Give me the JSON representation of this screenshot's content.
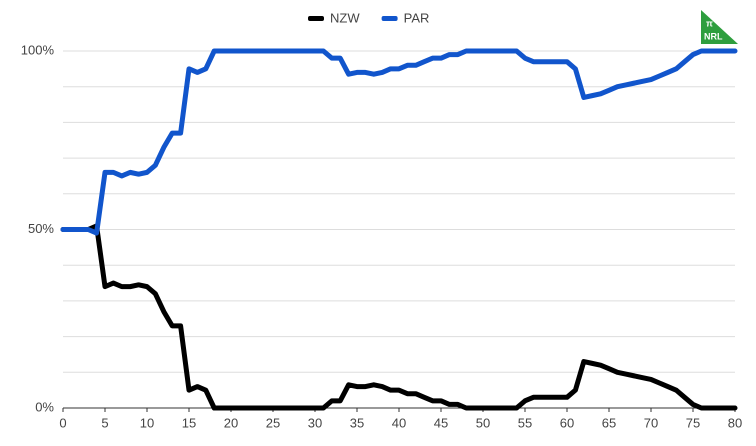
{
  "chart_data": {
    "type": "line",
    "logo": {
      "symbol": "π",
      "text": "NRL"
    },
    "x": [
      0,
      1,
      2,
      3,
      4,
      5,
      6,
      7,
      8,
      9,
      10,
      11,
      12,
      13,
      14,
      15,
      16,
      17,
      18,
      19,
      20,
      21,
      22,
      23,
      24,
      25,
      26,
      27,
      28,
      29,
      30,
      31,
      32,
      33,
      34,
      35,
      36,
      37,
      38,
      39,
      40,
      41,
      42,
      43,
      44,
      45,
      46,
      47,
      48,
      49,
      50,
      51,
      52,
      53,
      54,
      55,
      56,
      57,
      58,
      59,
      60,
      61,
      62,
      63,
      64,
      65,
      66,
      67,
      68,
      69,
      70,
      71,
      72,
      73,
      74,
      75,
      76,
      77,
      78,
      79,
      80
    ],
    "series": [
      {
        "name": "NZW",
        "color": "#000000",
        "values": [
          50,
          50,
          50,
          50,
          51,
          34,
          35,
          34,
          34,
          34.5,
          34,
          32,
          27,
          23,
          23,
          5,
          6,
          5,
          0,
          0,
          0,
          0,
          0,
          0,
          0,
          0,
          0,
          0,
          0,
          0,
          0,
          0,
          2,
          2,
          6.5,
          6,
          6,
          6.5,
          6,
          5,
          5,
          4,
          4,
          3,
          2,
          2,
          1,
          1,
          0,
          0,
          0,
          0,
          0,
          0,
          0,
          2,
          3,
          3,
          3,
          3,
          3,
          5,
          13,
          12.5,
          12,
          11,
          10,
          9.5,
          9,
          8.5,
          8,
          7,
          6,
          5,
          3,
          1,
          0,
          0,
          0,
          0,
          0
        ]
      },
      {
        "name": "PAR",
        "color": "#1155cc",
        "values": [
          50,
          50,
          50,
          50,
          49,
          66,
          66,
          65,
          66,
          65.5,
          66,
          68,
          73,
          77,
          77,
          95,
          94,
          95,
          100,
          100,
          100,
          100,
          100,
          100,
          100,
          100,
          100,
          100,
          100,
          100,
          100,
          100,
          98,
          98,
          93.5,
          94,
          94,
          93.5,
          94,
          95,
          95,
          96,
          96,
          97,
          98,
          98,
          99,
          99,
          100,
          100,
          100,
          100,
          100,
          100,
          100,
          98,
          97,
          97,
          97,
          97,
          97,
          95,
          87,
          87.5,
          88,
          89,
          90,
          90.5,
          91,
          91.5,
          92,
          93,
          94,
          95,
          97,
          99,
          100,
          100,
          100,
          100,
          100
        ]
      }
    ],
    "xlim": [
      0,
      80
    ],
    "xticks": [
      0,
      5,
      10,
      15,
      20,
      25,
      30,
      35,
      40,
      45,
      50,
      55,
      60,
      65,
      70,
      75,
      80
    ],
    "ylim": [
      0,
      100
    ],
    "yticks": [
      {
        "value": 0,
        "label": "0%"
      },
      {
        "value": 10,
        "label": null
      },
      {
        "value": 20,
        "label": null
      },
      {
        "value": 30,
        "label": null
      },
      {
        "value": 40,
        "label": null
      },
      {
        "value": 50,
        "label": "50%"
      },
      {
        "value": 60,
        "label": null
      },
      {
        "value": 70,
        "label": null
      },
      {
        "value": 80,
        "label": null
      },
      {
        "value": 90,
        "label": null
      },
      {
        "value": 100,
        "label": "100%"
      }
    ],
    "grid": true,
    "legend": "top"
  }
}
